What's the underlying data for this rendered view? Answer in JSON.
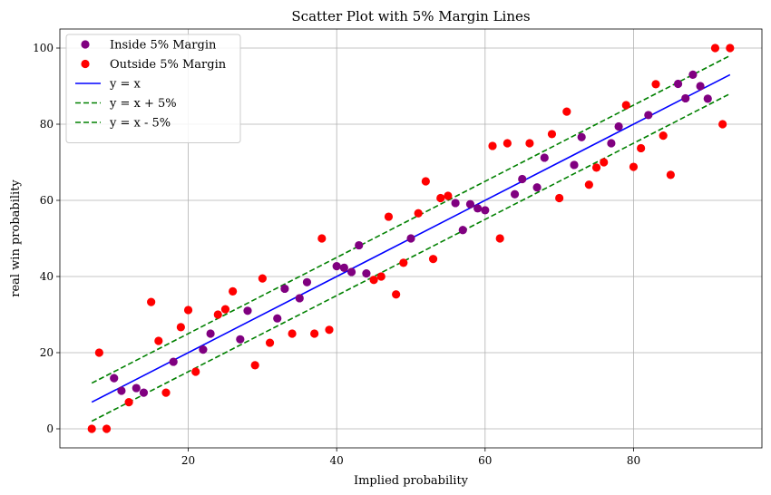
{
  "chart_data": {
    "type": "scatter",
    "title": "Scatter Plot with 5% Margin Lines",
    "xlabel": "Implied probability",
    "ylabel": "real win probability",
    "xlim": [
      2.7,
      97.3
    ],
    "ylim": [
      -5,
      105
    ],
    "xticks": [
      20,
      40,
      60,
      80
    ],
    "yticks": [
      0,
      20,
      40,
      60,
      80,
      100
    ],
    "grid": true,
    "legend_position": "top-left",
    "series": [
      {
        "name": "Inside 5% Margin",
        "kind": "points",
        "color": "#800080",
        "points": [
          [
            10,
            13.3
          ],
          [
            11,
            10
          ],
          [
            13,
            10.7
          ],
          [
            14,
            9.5
          ],
          [
            18,
            17.6
          ],
          [
            22,
            20.8
          ],
          [
            23,
            25
          ],
          [
            27,
            23.5
          ],
          [
            28,
            31
          ],
          [
            32,
            29
          ],
          [
            33,
            36.8
          ],
          [
            35,
            34.3
          ],
          [
            36,
            38.5
          ],
          [
            40,
            42.7
          ],
          [
            41,
            42.3
          ],
          [
            42,
            41.2
          ],
          [
            43,
            48.2
          ],
          [
            44,
            40.8
          ],
          [
            50,
            50
          ],
          [
            56,
            59.3
          ],
          [
            57,
            52.2
          ],
          [
            58,
            59
          ],
          [
            59,
            57.9
          ],
          [
            60,
            57.4
          ],
          [
            64,
            61.6
          ],
          [
            65,
            65.6
          ],
          [
            67,
            63.4
          ],
          [
            68,
            71.2
          ],
          [
            72,
            69.3
          ],
          [
            73,
            76.6
          ],
          [
            77,
            75
          ],
          [
            78,
            79.4
          ],
          [
            82,
            82.4
          ],
          [
            86,
            90.6
          ],
          [
            87,
            86.8
          ],
          [
            88,
            93
          ],
          [
            89,
            90
          ],
          [
            90,
            86.7
          ]
        ]
      },
      {
        "name": "Outside 5% Margin",
        "kind": "points",
        "color": "#ff0000",
        "points": [
          [
            7,
            0
          ],
          [
            8,
            20
          ],
          [
            9,
            0
          ],
          [
            12,
            7
          ],
          [
            15,
            33.3
          ],
          [
            16,
            23.1
          ],
          [
            17,
            9.5
          ],
          [
            19,
            26.7
          ],
          [
            20,
            31.2
          ],
          [
            21,
            15
          ],
          [
            24,
            30
          ],
          [
            25,
            31.4
          ],
          [
            26,
            36.1
          ],
          [
            29,
            16.7
          ],
          [
            30,
            39.5
          ],
          [
            31,
            22.6
          ],
          [
            34,
            25
          ],
          [
            37,
            25
          ],
          [
            38,
            50
          ],
          [
            39,
            26
          ],
          [
            45,
            39.1
          ],
          [
            46,
            40
          ],
          [
            47,
            55.7
          ],
          [
            48,
            35.3
          ],
          [
            49,
            43.6
          ],
          [
            51,
            56.6
          ],
          [
            52,
            65
          ],
          [
            53,
            44.6
          ],
          [
            54,
            60.6
          ],
          [
            55,
            61.2
          ],
          [
            61,
            74.3
          ],
          [
            62,
            50
          ],
          [
            63,
            75
          ],
          [
            66,
            75
          ],
          [
            69,
            77.4
          ],
          [
            70,
            60.6
          ],
          [
            71,
            83.3
          ],
          [
            74,
            64.1
          ],
          [
            75,
            68.6
          ],
          [
            76,
            70
          ],
          [
            79,
            85
          ],
          [
            80,
            68.8
          ],
          [
            81,
            73.7
          ],
          [
            83,
            90.5
          ],
          [
            84,
            77
          ],
          [
            85,
            66.7
          ],
          [
            91,
            100
          ],
          [
            92,
            80
          ],
          [
            93,
            100
          ]
        ]
      },
      {
        "name": "y = x",
        "kind": "line",
        "color": "#0000ff",
        "dash": false,
        "x": [
          7,
          93
        ],
        "y": [
          7,
          93
        ]
      },
      {
        "name": "y = x + 5%",
        "kind": "line",
        "color": "#008000",
        "dash": true,
        "x": [
          7,
          93
        ],
        "y": [
          12,
          98
        ]
      },
      {
        "name": "y = x - 5%",
        "kind": "line",
        "color": "#008000",
        "dash": true,
        "x": [
          7,
          93
        ],
        "y": [
          2,
          88
        ]
      }
    ]
  }
}
